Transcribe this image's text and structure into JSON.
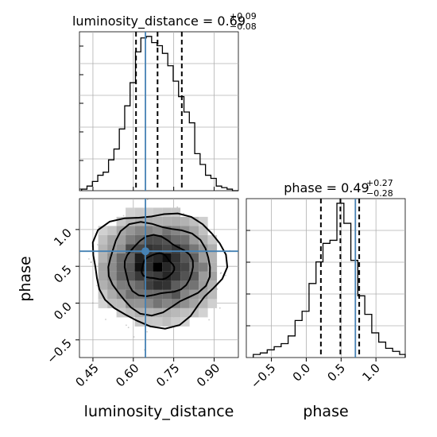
{
  "chart_data": {
    "type": "corner",
    "parameters": [
      "luminosity_distance",
      "phase"
    ],
    "truths": {
      "luminosity_distance": 0.645,
      "phase": 0.705
    },
    "colors": {
      "truth": "#4682b4",
      "lines": "#000000",
      "grid": "#b0b0b0"
    },
    "grid": true,
    "panels": [
      {
        "id": "hist_luminosity_distance",
        "type": "histogram",
        "title": {
          "text": "luminosity_distance = 0.69",
          "sup": "+0.09",
          "sub": "−0.08"
        },
        "xlim": [
          0.4,
          0.99
        ],
        "quantiles": [
          0.61,
          0.69,
          0.78
        ],
        "truth": 0.645,
        "bin_edges": [
          0.408,
          0.428,
          0.448,
          0.468,
          0.488,
          0.508,
          0.528,
          0.548,
          0.568,
          0.588,
          0.608,
          0.628,
          0.648,
          0.668,
          0.688,
          0.708,
          0.728,
          0.748,
          0.768,
          0.788,
          0.808,
          0.828,
          0.848,
          0.868,
          0.888,
          0.908,
          0.928,
          0.948,
          0.968,
          0.99
        ],
        "counts": [
          1,
          3,
          6,
          10,
          12,
          20,
          27,
          40,
          55,
          70,
          90,
          99,
          100,
          96,
          94,
          89,
          81,
          71,
          61,
          51,
          44,
          24,
          17,
          10,
          8,
          3,
          2,
          1,
          0
        ]
      },
      {
        "id": "scatter_phase_vs_luminosity_distance",
        "type": "2d_density",
        "xlabel": "luminosity_distance",
        "ylabel": "phase",
        "xlim": [
          0.4,
          0.99
        ],
        "ylim": [
          -0.74,
          1.42
        ],
        "xticks": [
          "0.45",
          "0.60",
          "0.75",
          "0.90"
        ],
        "yticks": [
          "−0.5",
          "0.0",
          "0.5",
          "1.0"
        ],
        "center": [
          0.69,
          0.49
        ]
      },
      {
        "id": "hist_phase",
        "type": "histogram",
        "xlabel": "phase",
        "title": {
          "text": "phase = 0.49",
          "sup": "+0.27",
          "sub": "−0.28"
        },
        "xlim": [
          -0.86,
          1.42
        ],
        "xticks": [
          "−0.5",
          "0.0",
          "0.5",
          "1.0"
        ],
        "quantiles": [
          0.21,
          0.49,
          0.76
        ],
        "truth": 0.705,
        "bin_edges": [
          -0.76,
          -0.66,
          -0.56,
          -0.46,
          -0.36,
          -0.26,
          -0.16,
          -0.06,
          0.04,
          0.14,
          0.24,
          0.34,
          0.44,
          0.54,
          0.64,
          0.74,
          0.84,
          0.94,
          1.04,
          1.14,
          1.24,
          1.34,
          1.42
        ],
        "counts": [
          2,
          3,
          5,
          7,
          9,
          14,
          24,
          30,
          48,
          62,
          74,
          76,
          100,
          87,
          63,
          40,
          28,
          16,
          10,
          6,
          4,
          2
        ]
      }
    ]
  }
}
